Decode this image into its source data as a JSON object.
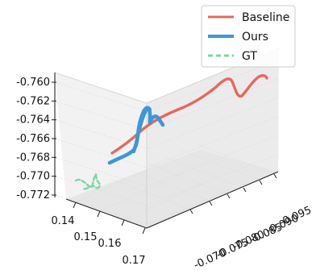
{
  "chart_data": {
    "type": "line",
    "projection": "3d",
    "legend_position": "top-right",
    "grid": true,
    "axes": {
      "x": {
        "ticks": [
          "0.14",
          "0.15",
          "0.16",
          "0.17"
        ]
      },
      "y": {
        "ticks": [
          "-0.095",
          "-0.090",
          "-0.085",
          "-0.080",
          "-0.075",
          "-0.070"
        ]
      },
      "z": {
        "ticks": [
          "-0.760",
          "-0.762",
          "-0.764",
          "-0.766",
          "-0.768",
          "-0.770",
          "-0.772"
        ]
      }
    },
    "series": [
      {
        "name": "Baseline",
        "color": "#e8685a",
        "style": "solid"
      },
      {
        "name": "Ours",
        "color": "#3d97d9",
        "style": "solid"
      },
      {
        "name": "GT",
        "color": "#7dd6a0",
        "style": "dashed"
      }
    ]
  }
}
